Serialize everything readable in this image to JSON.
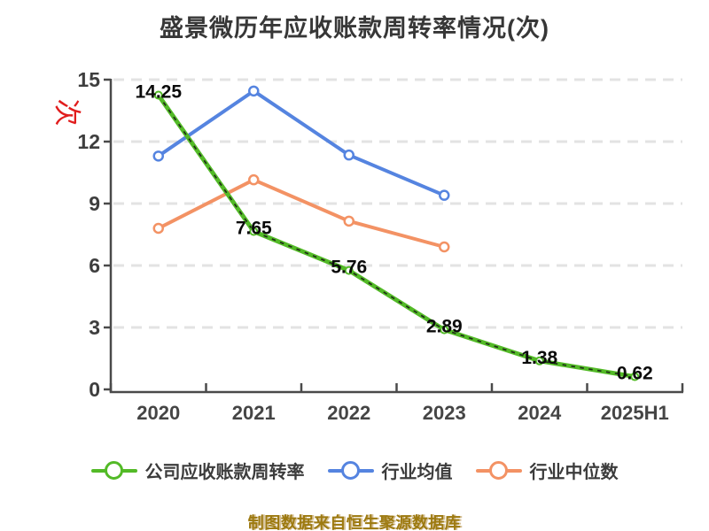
{
  "title": "盛景微历年应收账款周转率情况(次)",
  "y_axis_unit": "次",
  "watermark": "制图数据来自恒生聚源数据库",
  "colors": {
    "company_green": "#53ba27",
    "industry_mean_blue": "#5584e0",
    "industry_median_orange": "#f39264",
    "title_text": "#373737",
    "axis": "#4a4a4a",
    "tick_text": "#3e3e3e",
    "grid": "#e3e3e3",
    "value_label_text": "#0b0b0b",
    "unit_label_red": "#e11d1d",
    "watermark_gold": "#9d7a10",
    "marker_fill": "#ffffff"
  },
  "chart_data": {
    "type": "line",
    "title": "盛景微历年应收账款周转率情况(次)",
    "categories": [
      "2020",
      "2021",
      "2022",
      "2023",
      "2024",
      "2025H1"
    ],
    "xlabel": "",
    "ylabel": "次",
    "ylim": [
      0,
      15
    ],
    "y_ticks": [
      0,
      3,
      6,
      9,
      12,
      15
    ],
    "grid": "horizontal-dashed",
    "legend_position": "bottom",
    "series": [
      {
        "name": "公司应收账款周转率",
        "key": "company-turnover",
        "color": "#53ba27",
        "values": [
          14.25,
          7.65,
          5.76,
          2.89,
          1.38,
          0.62
        ],
        "point_labels": [
          "14.25",
          "7.65",
          "5.76",
          "2.89",
          "1.38",
          "0.62"
        ],
        "dash_overlay": true
      },
      {
        "name": "行业均值",
        "key": "industry-average",
        "color": "#5584e0",
        "values": [
          11.3,
          14.45,
          11.35,
          9.4,
          null,
          null
        ],
        "point_labels": [],
        "dash_overlay": false
      },
      {
        "name": "行业中位数",
        "key": "industry-median",
        "color": "#f39264",
        "values": [
          7.8,
          10.15,
          8.15,
          6.9,
          null,
          null
        ],
        "point_labels": [],
        "dash_overlay": false
      }
    ]
  },
  "legend": {
    "items": [
      {
        "label": "公司应收账款周转率",
        "color": "#53ba27"
      },
      {
        "label": "行业均值",
        "color": "#5584e0"
      },
      {
        "label": "行业中位数",
        "color": "#f39264"
      }
    ]
  }
}
